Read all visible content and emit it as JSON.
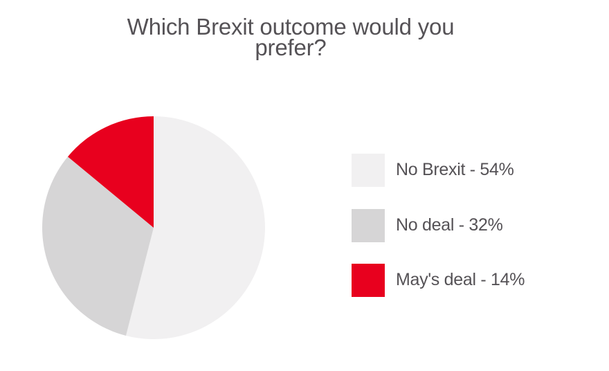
{
  "title_line1": "Which Brexit outcome would you",
  "title_line2": "prefer?",
  "legend": [
    {
      "label": "No Brexit - 54%",
      "color": "#f1f0f1"
    },
    {
      "label": "No deal - 32%",
      "color": "#d6d5d6"
    },
    {
      "label": "May's deal - 14%",
      "color": "#e8001e"
    }
  ],
  "chart_data": {
    "type": "pie",
    "title": "Which Brexit outcome would you prefer?",
    "categories": [
      "No Brexit",
      "No deal",
      "May's deal"
    ],
    "values": [
      54,
      32,
      14
    ],
    "unit": "%",
    "colors": [
      "#f1f0f1",
      "#d6d5d6",
      "#e8001e"
    ],
    "start_angle": "12 o'clock",
    "direction": "clockwise",
    "legend_position": "right"
  }
}
